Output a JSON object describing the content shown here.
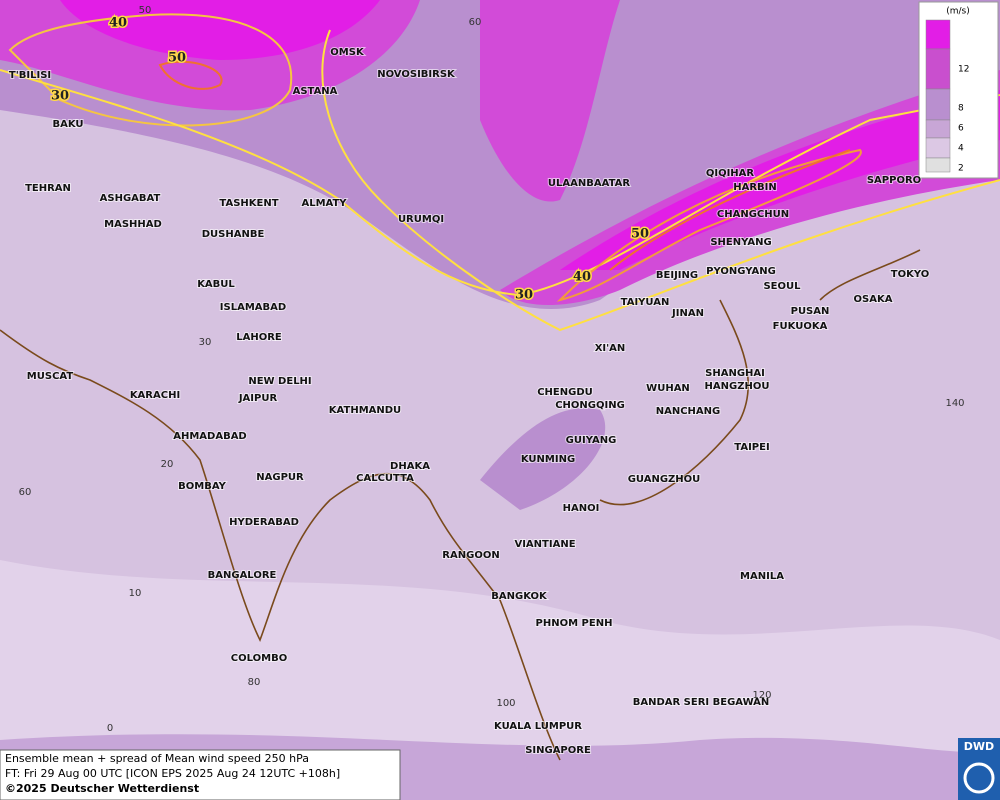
{
  "map": {
    "cities": [
      "T'BILISI",
      "BAKU",
      "TEHRAN",
      "ASHGABAT",
      "MASHHAD",
      "TASHKENT",
      "DUSHANBE",
      "ALMATY",
      "ASTANA",
      "OMSK",
      "NOVOSIBIRSK",
      "URUMQI",
      "ULAANBAATAR",
      "QIQIHAR",
      "HARBIN",
      "CHANGCHUN",
      "SHENYANG",
      "SAPPORO",
      "BEIJING",
      "PYONGYANG",
      "SEOUL",
      "TOKYO",
      "OSAKA",
      "PUSAN",
      "FUKUOKA",
      "TAIYUAN",
      "JINAN",
      "XI'AN",
      "SHANGHAI",
      "HANGZHOU",
      "WUHAN",
      "NANCHANG",
      "CHENGDU",
      "CHONGQING",
      "GUIYANG",
      "KUNMING",
      "TAIPEI",
      "GUANGZHOU",
      "HANOI",
      "KABUL",
      "ISLAMABAD",
      "LAHORE",
      "NEW DELHI",
      "JAIPUR",
      "KATHMANDU",
      "MUSCAT",
      "KARACHI",
      "AHMADABAD",
      "DHAKA",
      "CALCUTTA",
      "NAGPUR",
      "BOMBAY",
      "HYDERABAD",
      "RANGOON",
      "VIANTIANE",
      "BANGALORE",
      "BANGKOK",
      "PHNOM PENH",
      "MANILA",
      "COLOMBO",
      "BANDAR SERI BEGAWAN",
      "KUALA LUMPUR",
      "SINGAPORE"
    ],
    "contour_labels": [
      "40",
      "50",
      "30",
      "30",
      "40",
      "50"
    ],
    "grid_labels": [
      "50",
      "60",
      "30",
      "20",
      "60",
      "10",
      "80",
      "0",
      "100",
      "120",
      "140"
    ]
  },
  "legend": {
    "unit": "(m/s)",
    "levels": [
      12,
      8,
      6,
      4,
      2
    ]
  },
  "footer": {
    "lines": [
      "Ensemble mean + spread of Mean wind speed 250 hPa",
      "FT: Fri 29 Aug 00 UTC [ICON EPS 2025 Aug 24 12UTC +108h]",
      "©2025 Deutscher Wetterdienst"
    ],
    "logo": "DWD"
  }
}
